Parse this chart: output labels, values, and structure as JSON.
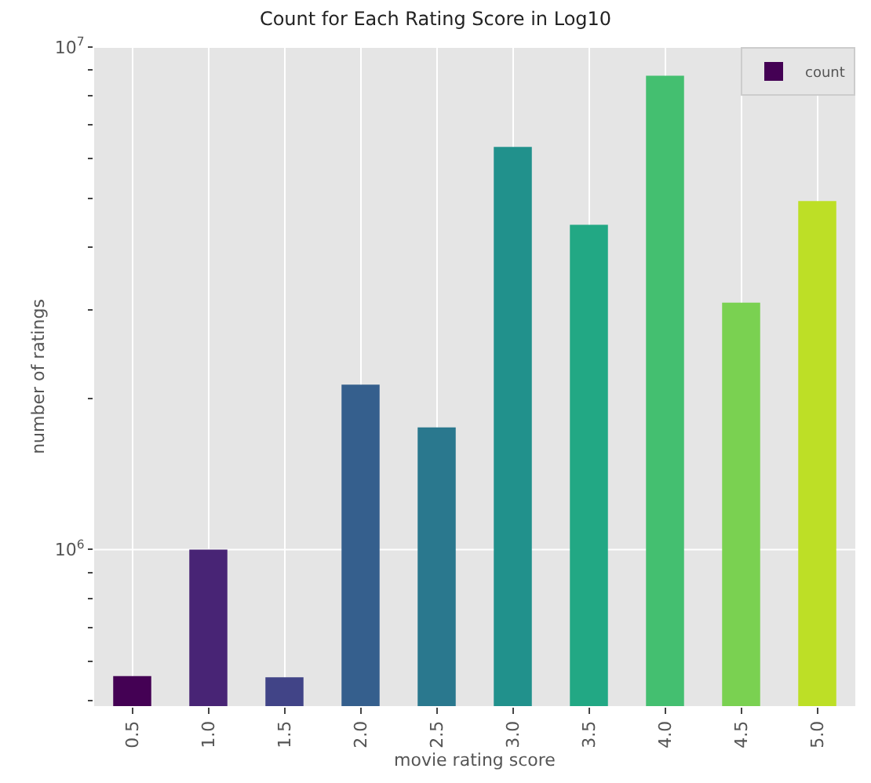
{
  "chart_data": {
    "type": "bar",
    "title": "Count for Each Rating Score in Log10",
    "xlabel": "movie rating score",
    "ylabel": "number of ratings",
    "categories": [
      "0.5",
      "1.0",
      "1.5",
      "2.0",
      "2.5",
      "3.0",
      "3.5",
      "4.0",
      "4.5",
      "5.0"
    ],
    "series": [
      {
        "name": "count",
        "colors": [
          "#440154",
          "#482475",
          "#414487",
          "#355f8d",
          "#2a788e",
          "#21918c",
          "#22a884",
          "#44bf70",
          "#7ad151",
          "#bddf26"
        ],
        "values": [
          560000,
          1000000,
          557000,
          2130000,
          1750000,
          6330000,
          4430000,
          8770000,
          3100000,
          4940000
        ]
      }
    ],
    "log": "y",
    "ylim": [
      488000,
      10000000
    ],
    "yticks": [
      {
        "value": 500000,
        "label": null
      },
      {
        "value": 600000,
        "label": null
      },
      {
        "value": 700000,
        "label": null
      },
      {
        "value": 800000,
        "label": null
      },
      {
        "value": 900000,
        "label": null
      },
      {
        "value": 1000000,
        "label": "10$^{6}$"
      },
      {
        "value": 2000000,
        "label": null
      },
      {
        "value": 3000000,
        "label": null
      },
      {
        "value": 4000000,
        "label": null
      },
      {
        "value": 5000000,
        "label": null
      },
      {
        "value": 6000000,
        "label": null
      },
      {
        "value": 7000000,
        "label": null
      },
      {
        "value": 8000000,
        "label": null
      },
      {
        "value": 9000000,
        "label": null
      },
      {
        "value": 10000000,
        "label": "10$^{7}$"
      }
    ],
    "grid": true,
    "legend": "top right"
  }
}
